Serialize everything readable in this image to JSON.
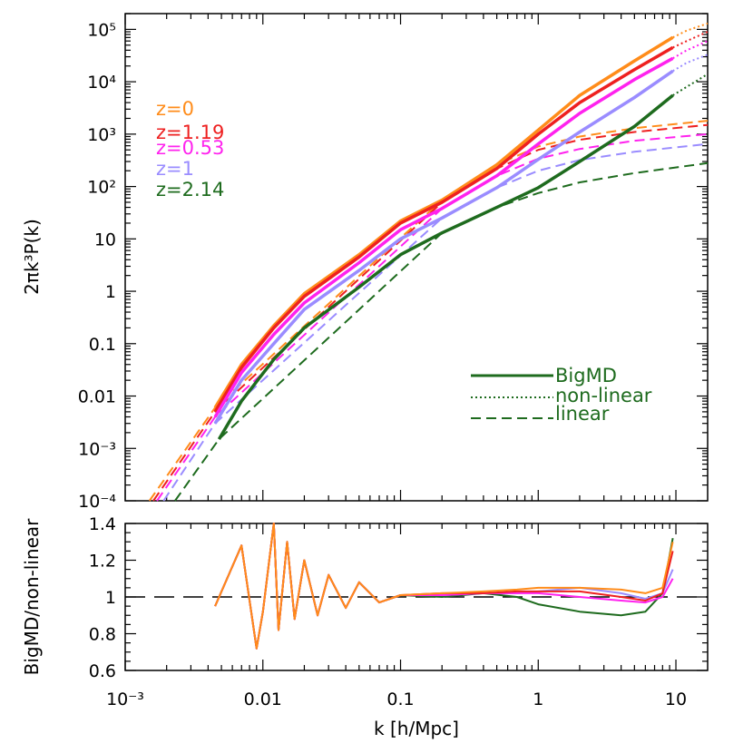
{
  "chart_data": [
    {
      "type": "line",
      "xlabel": "k [h/Mpc]",
      "ylabel": "2πk³P(k)",
      "xscale": "log",
      "yscale": "log",
      "xlim": [
        0.001,
        17
      ],
      "ylim": [
        0.0001,
        200000
      ],
      "x_ticks": [
        "10⁻³",
        "0.01",
        "0.1",
        "1",
        "10"
      ],
      "y_ticks": [
        "10⁻⁴",
        "10⁻³",
        "0.01",
        "0.1",
        "1",
        "10",
        "10²",
        "10³",
        "10⁴",
        "10⁵"
      ],
      "redshift_legend": [
        "z=0",
        "z=1.19",
        "z=0.53",
        "z=1",
        "z=2.14"
      ],
      "style_legend": [
        "BigMD",
        "non-linear",
        "linear"
      ],
      "style_legend_color": "#1e6b1e",
      "series": [
        {
          "name": "z=0",
          "color": "#ff8c1a",
          "bigmd": [
            [
              0.0045,
              0.006
            ],
            [
              0.007,
              0.04
            ],
            [
              0.012,
              0.22
            ],
            [
              0.02,
              0.9
            ],
            [
              0.05,
              5.0
            ],
            [
              0.1,
              22
            ],
            [
              0.2,
              55
            ],
            [
              0.5,
              260
            ],
            [
              1,
              1200
            ],
            [
              2,
              5500
            ],
            [
              5,
              25000
            ],
            [
              9.5,
              70000
            ]
          ],
          "nonlinear": [
            [
              9.5,
              70000
            ],
            [
              12,
              95000
            ],
            [
              17,
              130000
            ]
          ],
          "linear": [
            [
              0.0015,
              0.0001
            ],
            [
              0.0045,
              0.006
            ],
            [
              0.2,
              55
            ],
            [
              0.5,
              260
            ],
            [
              1,
              580
            ],
            [
              2,
              900
            ],
            [
              5,
              1300
            ],
            [
              17,
              1800
            ]
          ]
        },
        {
          "name": "z=1.19",
          "color": "#ee2020",
          "bigmd": [
            [
              0.0045,
              0.005
            ],
            [
              0.007,
              0.035
            ],
            [
              0.012,
              0.2
            ],
            [
              0.02,
              0.8
            ],
            [
              0.05,
              4.5
            ],
            [
              0.1,
              20
            ],
            [
              0.2,
              50
            ],
            [
              0.5,
              220
            ],
            [
              1,
              1000
            ],
            [
              2,
              4000
            ],
            [
              5,
              17000
            ],
            [
              9.5,
              45000
            ]
          ],
          "nonlinear": [
            [
              9.5,
              45000
            ],
            [
              12,
              60000
            ],
            [
              17,
              90000
            ]
          ],
          "linear": [
            [
              0.0016,
              0.0001
            ],
            [
              0.0045,
              0.005
            ],
            [
              0.2,
              50
            ],
            [
              0.5,
              220
            ],
            [
              1,
              500
            ],
            [
              2,
              780
            ],
            [
              5,
              1100
            ],
            [
              17,
              1500
            ]
          ]
        },
        {
          "name": "z=0.53",
          "color": "#ff22ee",
          "bigmd": [
            [
              0.0045,
              0.004
            ],
            [
              0.007,
              0.028
            ],
            [
              0.012,
              0.15
            ],
            [
              0.02,
              0.6
            ],
            [
              0.05,
              3.5
            ],
            [
              0.1,
              15
            ],
            [
              0.2,
              38
            ],
            [
              0.5,
              160
            ],
            [
              1,
              650
            ],
            [
              2,
              2500
            ],
            [
              5,
              11000
            ],
            [
              9.5,
              28000
            ]
          ],
          "nonlinear": [
            [
              9.5,
              28000
            ],
            [
              12,
              40000
            ],
            [
              17,
              60000
            ]
          ],
          "linear": [
            [
              0.0017,
              0.0001
            ],
            [
              0.0045,
              0.004
            ],
            [
              0.2,
              38
            ],
            [
              0.5,
              160
            ],
            [
              1,
              340
            ],
            [
              2,
              520
            ],
            [
              5,
              750
            ],
            [
              17,
              1000
            ]
          ]
        },
        {
          "name": "z=1",
          "color": "#9a8cff",
          "bigmd": [
            [
              0.0045,
              0.003
            ],
            [
              0.007,
              0.02
            ],
            [
              0.012,
              0.1
            ],
            [
              0.02,
              0.45
            ],
            [
              0.05,
              2.5
            ],
            [
              0.1,
              10
            ],
            [
              0.2,
              25
            ],
            [
              0.5,
              95
            ],
            [
              1,
              330
            ],
            [
              2,
              1100
            ],
            [
              5,
              5000
            ],
            [
              9.5,
              16000
            ]
          ],
          "nonlinear": [
            [
              9.5,
              16000
            ],
            [
              12,
              23000
            ],
            [
              17,
              33000
            ]
          ],
          "linear": [
            [
              0.0019,
              0.0001
            ],
            [
              0.0045,
              0.003
            ],
            [
              0.2,
              25
            ],
            [
              0.5,
              95
            ],
            [
              1,
              200
            ],
            [
              2,
              320
            ],
            [
              5,
              460
            ],
            [
              17,
              650
            ]
          ]
        },
        {
          "name": "z=2.14",
          "color": "#1e6b1e",
          "bigmd": [
            [
              0.0048,
              0.0015
            ],
            [
              0.007,
              0.008
            ],
            [
              0.012,
              0.05
            ],
            [
              0.02,
              0.2
            ],
            [
              0.05,
              1.2
            ],
            [
              0.1,
              5
            ],
            [
              0.2,
              13
            ],
            [
              0.5,
              40
            ],
            [
              1,
              95
            ],
            [
              2,
              300
            ],
            [
              5,
              1400
            ],
            [
              9.5,
              5500
            ]
          ],
          "nonlinear": [
            [
              9.5,
              5500
            ],
            [
              12,
              8000
            ],
            [
              17,
              14000
            ]
          ],
          "linear": [
            [
              0.0023,
              0.0001
            ],
            [
              0.0048,
              0.0015
            ],
            [
              0.2,
              13
            ],
            [
              0.5,
              40
            ],
            [
              1,
              75
            ],
            [
              2,
              120
            ],
            [
              5,
              180
            ],
            [
              17,
              280
            ]
          ]
        }
      ]
    },
    {
      "type": "line",
      "xlabel": "k [h/Mpc]",
      "ylabel": "BigMD/non-linear",
      "xscale": "log",
      "xlim": [
        0.001,
        17
      ],
      "ylim": [
        0.6,
        1.4
      ],
      "x_ticks": [
        "10⁻³",
        "0.01",
        "0.1",
        "1",
        "10"
      ],
      "y_ticks": [
        "0.6",
        "0.8",
        "1",
        "1.2",
        "1.4"
      ],
      "reference_line": 1,
      "series": [
        {
          "name": "z=2.14",
          "color": "#1e6b1e",
          "points": [
            [
              0.0045,
              0.95
            ],
            [
              0.007,
              1.28
            ],
            [
              0.009,
              0.72
            ],
            [
              0.01,
              0.92
            ],
            [
              0.012,
              1.4
            ],
            [
              0.013,
              0.82
            ],
            [
              0.015,
              1.3
            ],
            [
              0.017,
              0.88
            ],
            [
              0.02,
              1.2
            ],
            [
              0.025,
              0.9
            ],
            [
              0.03,
              1.12
            ],
            [
              0.04,
              0.94
            ],
            [
              0.05,
              1.08
            ],
            [
              0.07,
              0.97
            ],
            [
              0.1,
              1.01
            ],
            [
              0.2,
              1.0
            ],
            [
              0.4,
              1.02
            ],
            [
              0.7,
              1.0
            ],
            [
              1,
              0.96
            ],
            [
              2,
              0.92
            ],
            [
              4,
              0.9
            ],
            [
              6,
              0.92
            ],
            [
              8,
              1.02
            ],
            [
              9.5,
              1.32
            ]
          ]
        },
        {
          "name": "z=1",
          "color": "#9a8cff",
          "points": [
            [
              0.0045,
              0.95
            ],
            [
              0.007,
              1.28
            ],
            [
              0.009,
              0.72
            ],
            [
              0.01,
              0.92
            ],
            [
              0.012,
              1.4
            ],
            [
              0.013,
              0.82
            ],
            [
              0.015,
              1.3
            ],
            [
              0.017,
              0.88
            ],
            [
              0.02,
              1.2
            ],
            [
              0.025,
              0.9
            ],
            [
              0.03,
              1.12
            ],
            [
              0.04,
              0.94
            ],
            [
              0.05,
              1.08
            ],
            [
              0.07,
              0.97
            ],
            [
              0.1,
              1.01
            ],
            [
              0.2,
              1.01
            ],
            [
              0.4,
              1.02
            ],
            [
              0.7,
              1.02
            ],
            [
              1,
              1.03
            ],
            [
              2,
              1.05
            ],
            [
              4,
              1.02
            ],
            [
              6,
              0.99
            ],
            [
              8,
              1.02
            ],
            [
              9.5,
              1.15
            ]
          ]
        },
        {
          "name": "z=0.53",
          "color": "#ff22ee",
          "points": [
            [
              0.0045,
              0.95
            ],
            [
              0.007,
              1.28
            ],
            [
              0.009,
              0.72
            ],
            [
              0.01,
              0.92
            ],
            [
              0.012,
              1.4
            ],
            [
              0.013,
              0.82
            ],
            [
              0.015,
              1.3
            ],
            [
              0.017,
              0.88
            ],
            [
              0.02,
              1.2
            ],
            [
              0.025,
              0.9
            ],
            [
              0.03,
              1.12
            ],
            [
              0.04,
              0.94
            ],
            [
              0.05,
              1.08
            ],
            [
              0.07,
              0.97
            ],
            [
              0.1,
              1.01
            ],
            [
              0.2,
              1.01
            ],
            [
              0.4,
              1.02
            ],
            [
              0.7,
              1.02
            ],
            [
              1,
              1.02
            ],
            [
              2,
              1.0
            ],
            [
              4,
              0.98
            ],
            [
              6,
              0.97
            ],
            [
              8,
              1.0
            ],
            [
              9.5,
              1.1
            ]
          ]
        },
        {
          "name": "z=1.19",
          "color": "#ee2020",
          "points": [
            [
              0.0045,
              0.95
            ],
            [
              0.007,
              1.28
            ],
            [
              0.009,
              0.72
            ],
            [
              0.01,
              0.92
            ],
            [
              0.012,
              1.4
            ],
            [
              0.013,
              0.82
            ],
            [
              0.015,
              1.3
            ],
            [
              0.017,
              0.88
            ],
            [
              0.02,
              1.2
            ],
            [
              0.025,
              0.9
            ],
            [
              0.03,
              1.12
            ],
            [
              0.04,
              0.94
            ],
            [
              0.05,
              1.08
            ],
            [
              0.07,
              0.97
            ],
            [
              0.1,
              1.01
            ],
            [
              0.2,
              1.02
            ],
            [
              0.4,
              1.02
            ],
            [
              0.7,
              1.03
            ],
            [
              1,
              1.03
            ],
            [
              2,
              1.03
            ],
            [
              4,
              1.0
            ],
            [
              6,
              0.98
            ],
            [
              8,
              1.02
            ],
            [
              9.5,
              1.25
            ]
          ]
        },
        {
          "name": "z=0",
          "color": "#ff8c1a",
          "points": [
            [
              0.0045,
              0.95
            ],
            [
              0.007,
              1.28
            ],
            [
              0.009,
              0.72
            ],
            [
              0.01,
              0.92
            ],
            [
              0.012,
              1.4
            ],
            [
              0.013,
              0.82
            ],
            [
              0.015,
              1.3
            ],
            [
              0.017,
              0.88
            ],
            [
              0.02,
              1.2
            ],
            [
              0.025,
              0.9
            ],
            [
              0.03,
              1.12
            ],
            [
              0.04,
              0.94
            ],
            [
              0.05,
              1.08
            ],
            [
              0.07,
              0.97
            ],
            [
              0.1,
              1.01
            ],
            [
              0.2,
              1.02
            ],
            [
              0.4,
              1.03
            ],
            [
              0.7,
              1.04
            ],
            [
              1,
              1.05
            ],
            [
              2,
              1.05
            ],
            [
              4,
              1.04
            ],
            [
              6,
              1.02
            ],
            [
              8,
              1.05
            ],
            [
              9.5,
              1.3
            ]
          ]
        }
      ]
    }
  ]
}
